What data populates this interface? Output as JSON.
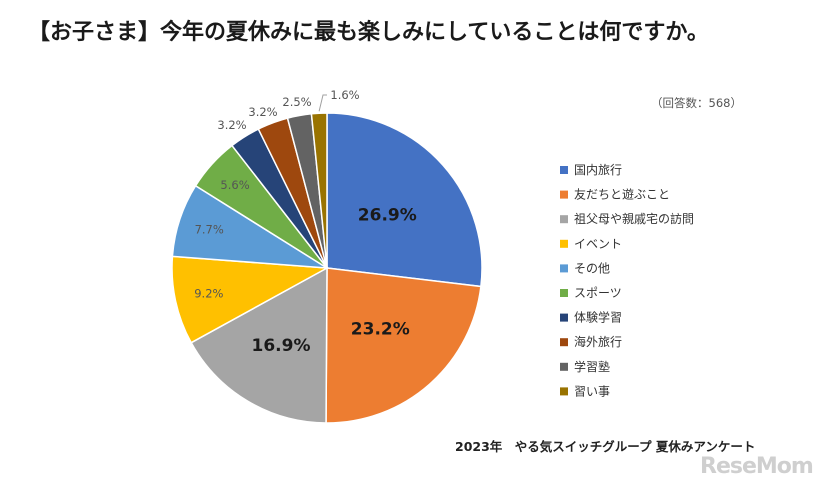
{
  "title": "【お子さま】今年の夏休みに最も楽しみにしていることは何ですか。",
  "respondents": "（回答数：568）",
  "source": "2023年　やる気スイッチグループ 夏休みアンケート",
  "watermark": "ReseMom",
  "chart_data": {
    "type": "pie",
    "title": "【お子さま】今年の夏休みに最も楽しみにしていることは何ですか。",
    "legend_position": "right",
    "slices": [
      {
        "label": "国内旅行",
        "value": 26.9,
        "display": "26.9%",
        "color": "#4472C4"
      },
      {
        "label": "友だちと遊ぶこと",
        "value": 23.2,
        "display": "23.2%",
        "color": "#ED7D31"
      },
      {
        "label": "祖父母や親戚宅の訪問",
        "value": 16.9,
        "display": "16.9%",
        "color": "#A5A5A5"
      },
      {
        "label": "イベント",
        "value": 9.2,
        "display": "9.2%",
        "color": "#FFC000"
      },
      {
        "label": "その他",
        "value": 7.7,
        "display": "7.7%",
        "color": "#5B9BD5"
      },
      {
        "label": "スポーツ",
        "value": 5.6,
        "display": "5.6%",
        "color": "#70AD47"
      },
      {
        "label": "体験学習",
        "value": 3.2,
        "display": "3.2%",
        "color": "#264478"
      },
      {
        "label": "海外旅行",
        "value": 3.2,
        "display": "3.2%",
        "color": "#9E480E"
      },
      {
        "label": "学習塾",
        "value": 2.5,
        "display": "2.5%",
        "color": "#636363"
      },
      {
        "label": "習い事",
        "value": 1.6,
        "display": "1.6%",
        "color": "#997300"
      }
    ]
  }
}
